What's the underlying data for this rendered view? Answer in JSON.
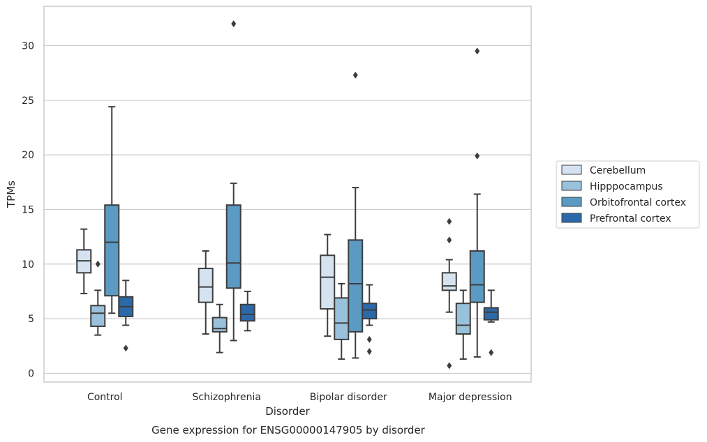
{
  "caption": "Gene expression for ENSG00000147905 by disorder",
  "chart_data": {
    "type": "box",
    "xlabel": "Disorder",
    "ylabel": "TPMs",
    "ylim": [
      -0.8,
      33.6
    ],
    "yticks": [
      0,
      5,
      10,
      15,
      20,
      25,
      30
    ],
    "grid": "horizontal",
    "legend_placement": "right",
    "categories": [
      "Control",
      "Schizophrenia",
      "Bipolar disorder",
      "Major depression"
    ],
    "series": [
      {
        "name": "Cerebellum",
        "color": "#d5e3f0",
        "boxes": [
          {
            "whisker_low": 7.3,
            "q1": 9.2,
            "median": 10.3,
            "q3": 11.3,
            "whisker_high": 13.2,
            "outliers": []
          },
          {
            "whisker_low": 3.6,
            "q1": 6.5,
            "median": 7.9,
            "q3": 9.6,
            "whisker_high": 11.2,
            "outliers": []
          },
          {
            "whisker_low": 3.4,
            "q1": 5.9,
            "median": 8.8,
            "q3": 10.8,
            "whisker_high": 12.7,
            "outliers": []
          },
          {
            "whisker_low": 5.6,
            "q1": 7.6,
            "median": 8.0,
            "q3": 9.2,
            "whisker_high": 10.4,
            "outliers": [
              0.7,
              12.2,
              13.9
            ]
          }
        ]
      },
      {
        "name": "Hipppocampus",
        "color": "#9ac1db",
        "boxes": [
          {
            "whisker_low": 3.5,
            "q1": 4.3,
            "median": 5.5,
            "q3": 6.2,
            "whisker_high": 7.6,
            "outliers": [
              10.0
            ]
          },
          {
            "whisker_low": 1.9,
            "q1": 3.8,
            "median": 4.1,
            "q3": 5.1,
            "whisker_high": 6.3,
            "outliers": []
          },
          {
            "whisker_low": 1.3,
            "q1": 3.1,
            "median": 4.6,
            "q3": 6.9,
            "whisker_high": 8.2,
            "outliers": []
          },
          {
            "whisker_low": 1.3,
            "q1": 3.6,
            "median": 4.4,
            "q3": 6.4,
            "whisker_high": 7.6,
            "outliers": []
          }
        ]
      },
      {
        "name": "Orbitofrontal cortex",
        "color": "#5b9ac3",
        "boxes": [
          {
            "whisker_low": 5.5,
            "q1": 7.1,
            "median": 12.0,
            "q3": 15.4,
            "whisker_high": 24.4,
            "outliers": []
          },
          {
            "whisker_low": 3.0,
            "q1": 7.8,
            "median": 10.1,
            "q3": 15.4,
            "whisker_high": 17.4,
            "outliers": [
              32.0
            ]
          },
          {
            "whisker_low": 1.4,
            "q1": 3.8,
            "median": 8.2,
            "q3": 12.2,
            "whisker_high": 17.0,
            "outliers": [
              27.3
            ]
          },
          {
            "whisker_low": 1.5,
            "q1": 6.5,
            "median": 8.1,
            "q3": 11.2,
            "whisker_high": 16.4,
            "outliers": [
              19.9,
              29.5
            ]
          }
        ]
      },
      {
        "name": "Prefrontal cortex",
        "color": "#2b69a8",
        "boxes": [
          {
            "whisker_low": 4.4,
            "q1": 5.2,
            "median": 6.1,
            "q3": 7.0,
            "whisker_high": 8.5,
            "outliers": [
              2.3
            ]
          },
          {
            "whisker_low": 3.9,
            "q1": 4.8,
            "median": 5.4,
            "q3": 6.3,
            "whisker_high": 7.5,
            "outliers": []
          },
          {
            "whisker_low": 4.4,
            "q1": 5.0,
            "median": 5.8,
            "q3": 6.4,
            "whisker_high": 8.1,
            "outliers": [
              2.0,
              3.1
            ]
          },
          {
            "whisker_low": 4.7,
            "q1": 4.9,
            "median": 5.6,
            "q3": 6.0,
            "whisker_high": 7.6,
            "outliers": [
              1.9
            ]
          }
        ]
      }
    ]
  }
}
